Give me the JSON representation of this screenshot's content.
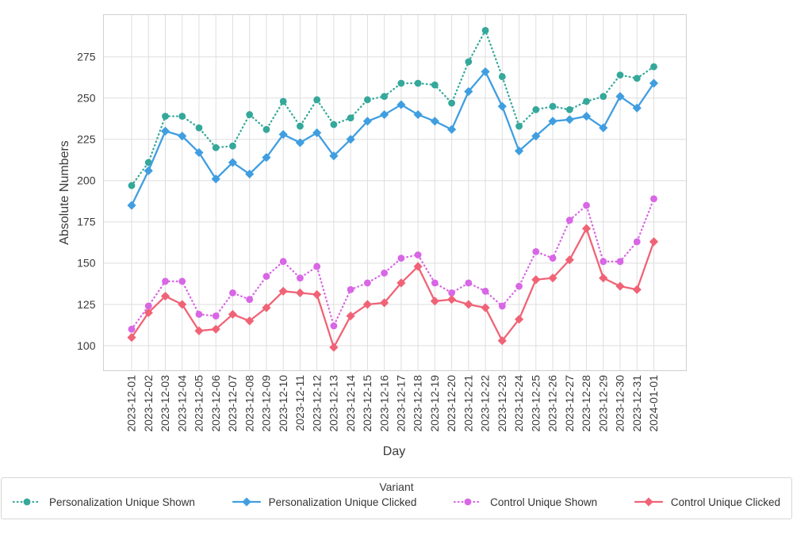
{
  "chart_data": {
    "type": "line",
    "title": "",
    "xlabel": "Day",
    "ylabel": "Absolute Numbers",
    "grid": true,
    "legend_position": "bottom",
    "legend_title": "Variant",
    "yticks": [
      100,
      125,
      150,
      175,
      200,
      225,
      250,
      275
    ],
    "ylim": [
      93,
      301
    ],
    "x": [
      "2023-12-01",
      "2023-12-02",
      "2023-12-03",
      "2023-12-04",
      "2023-12-05",
      "2023-12-06",
      "2023-12-07",
      "2023-12-08",
      "2023-12-09",
      "2023-12-10",
      "2023-12-11",
      "2023-12-12",
      "2023-12-13",
      "2023-12-14",
      "2023-12-15",
      "2023-12-16",
      "2023-12-17",
      "2023-12-18",
      "2023-12-19",
      "2023-12-20",
      "2023-12-21",
      "2023-12-22",
      "2023-12-23",
      "2023-12-24",
      "2023-12-25",
      "2023-12-26",
      "2023-12-27",
      "2023-12-28",
      "2023-12-29",
      "2023-12-30",
      "2023-12-31",
      "2024-01-01"
    ],
    "series": [
      {
        "name": "Personalization Unique Shown",
        "color": "#34A89A",
        "line": "dotted",
        "marker": "circle",
        "values": [
          197,
          211,
          239,
          239,
          232,
          220,
          221,
          240,
          231,
          248,
          233,
          249,
          234,
          238,
          249,
          251,
          259,
          259,
          258,
          247,
          272,
          291,
          263,
          233,
          243,
          245,
          243,
          248,
          251,
          264,
          262,
          269
        ]
      },
      {
        "name": "Personalization Unique Clicked",
        "color": "#409EE0",
        "line": "solid",
        "marker": "diamond",
        "values": [
          185,
          206,
          230,
          227,
          217,
          201,
          211,
          204,
          214,
          228,
          223,
          229,
          215,
          225,
          236,
          240,
          246,
          240,
          236,
          231,
          254,
          266,
          245,
          218,
          227,
          236,
          237,
          239,
          232,
          251,
          244,
          259
        ]
      },
      {
        "name": "Control Unique Shown",
        "color": "#D866E5",
        "line": "dotted",
        "marker": "circle",
        "values": [
          110,
          124,
          139,
          139,
          119,
          118,
          132,
          128,
          142,
          151,
          141,
          148,
          112,
          134,
          138,
          144,
          153,
          155,
          138,
          132,
          138,
          133,
          124,
          136,
          157,
          153,
          176,
          185,
          151,
          151,
          163,
          189
        ]
      },
      {
        "name": "Control Unique Clicked",
        "color": "#F06376",
        "line": "solid",
        "marker": "diamond",
        "values": [
          105,
          120,
          130,
          125,
          109,
          110,
          119,
          115,
          123,
          133,
          132,
          131,
          99,
          118,
          125,
          126,
          138,
          148,
          127,
          128,
          125,
          123,
          103,
          116,
          140,
          141,
          152,
          171,
          141,
          136,
          134,
          163
        ]
      }
    ]
  },
  "style": {
    "grid_color": "#dedede",
    "spine_color": "#cfcfcf",
    "text_color": "#3a3a3a"
  }
}
